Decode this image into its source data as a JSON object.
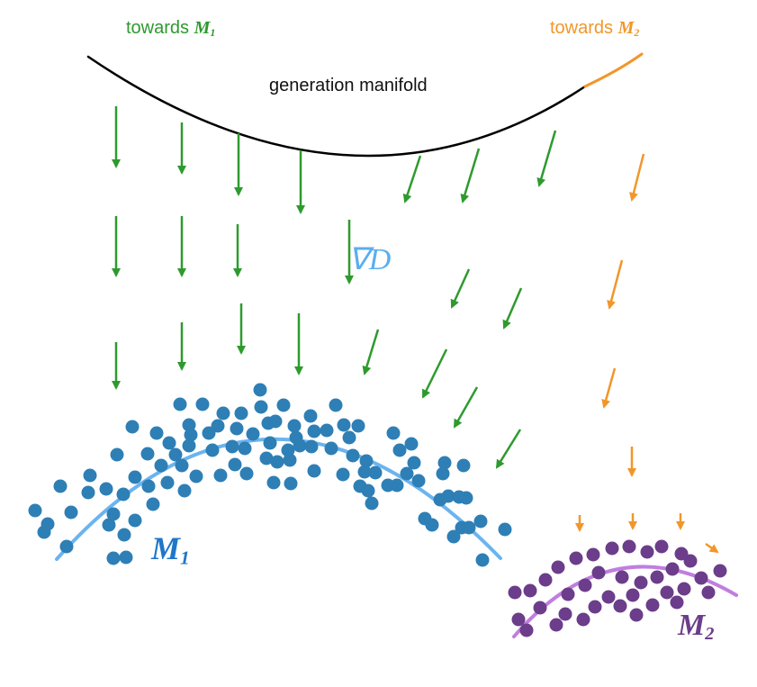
{
  "labels": {
    "towards_m1_prefix": "towards ",
    "towards_m1_math": "M",
    "towards_m1_sub": "1",
    "towards_m2_prefix": "towards ",
    "towards_m2_math": "M",
    "towards_m2_sub": "2",
    "generation_manifold": "generation manifold",
    "gradient": "∇D",
    "manifold1_main": "M",
    "manifold1_sub": "1",
    "manifold2_main": "M",
    "manifold2_sub": "2"
  },
  "colors": {
    "green_arrows": "#2e9a2e",
    "orange_arrows": "#f2962a",
    "gen_curve": "#000000",
    "manifold1_curve": "#6bb4ef",
    "manifold1_points": "#2e7fb5",
    "manifold2_curve": "#c07ee0",
    "manifold2_points": "#6b3d8a"
  }
}
